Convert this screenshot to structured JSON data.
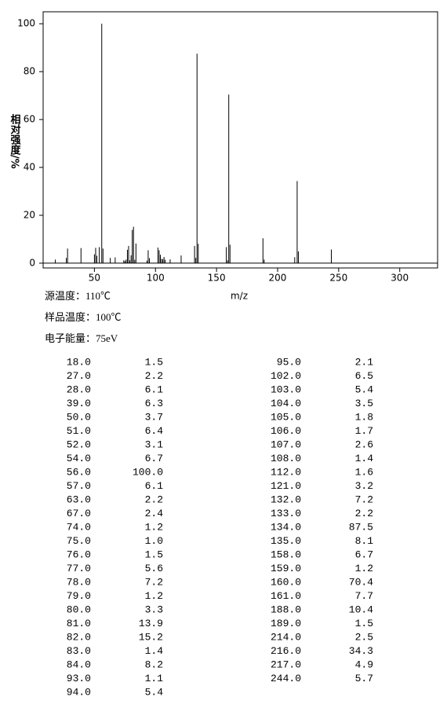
{
  "chart_data": {
    "type": "bar",
    "xlabel": "m/z",
    "ylabel": "相对强度/%",
    "color": "#000000",
    "grid": false,
    "xlim": [
      8,
      331
    ],
    "xticks": [
      50,
      100,
      150,
      200,
      250,
      300
    ],
    "ylim": [
      -2,
      105
    ],
    "yticks": [
      0,
      20,
      40,
      60,
      80,
      100
    ],
    "x": [
      18,
      27,
      28,
      39,
      50,
      51,
      52,
      54,
      56,
      57,
      63,
      67,
      74,
      75,
      76,
      77,
      78,
      79,
      80,
      81,
      82,
      83,
      84,
      93,
      94,
      95,
      102,
      103,
      104,
      105,
      106,
      107,
      108,
      112,
      121,
      132,
      133,
      134,
      135,
      158,
      159,
      160,
      161,
      188,
      189,
      214,
      216,
      217,
      244
    ],
    "x_labels": [
      "18.0",
      "27.0",
      "28.0",
      "39.0",
      "50.0",
      "51.0",
      "52.0",
      "54.0",
      "56.0",
      "57.0",
      "63.0",
      "67.0",
      "74.0",
      "75.0",
      "76.0",
      "77.0",
      "78.0",
      "79.0",
      "80.0",
      "81.0",
      "82.0",
      "83.0",
      "84.0",
      "93.0",
      "94.0",
      "95.0",
      "102.0",
      "103.0",
      "104.0",
      "105.0",
      "106.0",
      "107.0",
      "108.0",
      "112.0",
      "121.0",
      "132.0",
      "133.0",
      "134.0",
      "135.0",
      "158.0",
      "159.0",
      "160.0",
      "161.0",
      "188.0",
      "189.0",
      "214.0",
      "216.0",
      "217.0",
      "244.0"
    ],
    "values": [
      1.5,
      2.2,
      6.1,
      6.3,
      3.7,
      6.4,
      3.1,
      6.7,
      100,
      6.1,
      2.2,
      2.4,
      1.2,
      1.0,
      1.5,
      5.6,
      7.2,
      1.2,
      3.3,
      13.9,
      15.2,
      1.4,
      8.2,
      1.1,
      5.4,
      2.1,
      6.5,
      5.4,
      3.5,
      1.8,
      1.7,
      2.6,
      1.4,
      1.6,
      3.2,
      7.2,
      2.2,
      87.5,
      8.1,
      6.7,
      1.2,
      70.4,
      7.7,
      10.4,
      1.5,
      2.5,
      34.3,
      4.9,
      5.7
    ],
    "value_labels": [
      "1.5",
      "2.2",
      "6.1",
      "6.3",
      "3.7",
      "6.4",
      "3.1",
      "6.7",
      "100.0",
      "6.1",
      "2.2",
      "2.4",
      "1.2",
      "1.0",
      "1.5",
      "5.6",
      "7.2",
      "1.2",
      "3.3",
      "13.9",
      "15.2",
      "1.4",
      "8.2",
      "1.1",
      "5.4",
      "2.1",
      "6.5",
      "5.4",
      "3.5",
      "1.8",
      "1.7",
      "2.6",
      "1.4",
      "1.6",
      "3.2",
      "7.2",
      "2.2",
      "87.5",
      "8.1",
      "6.7",
      "1.2",
      "70.4",
      "7.7",
      "10.4",
      "1.5",
      "2.5",
      "34.3",
      "4.9",
      "5.7"
    ]
  },
  "conditions": [
    "源温度：110℃",
    "样品温度：100℃",
    "电子能量：75eV"
  ]
}
